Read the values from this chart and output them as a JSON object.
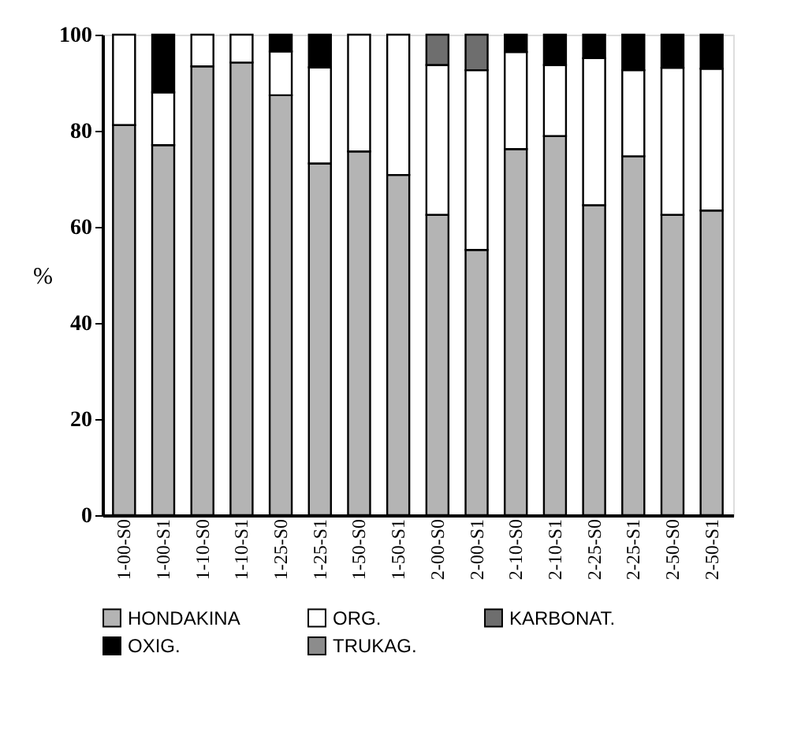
{
  "chart_data": {
    "type": "bar",
    "stacked": true,
    "ylabel": "%",
    "categories": [
      "1-00-S0",
      "1-00-S1",
      "1-10-S0",
      "1-10-S1",
      "1-25-S0",
      "1-25-S1",
      "1-50-S0",
      "1-50-S1",
      "2-00-S0",
      "2-00-S1",
      "2-10-S0",
      "2-10-S1",
      "2-25-S0",
      "2-25-S1",
      "2-50-S0",
      "2-50-S1"
    ],
    "series": [
      {
        "name": "HONDAKINA",
        "color": "#b4b4b4",
        "values": [
          81.2,
          77.0,
          93.4,
          94.2,
          87.4,
          73.2,
          75.7,
          70.8,
          62.5,
          55.2,
          76.2,
          78.9,
          64.5,
          74.7,
          62.5,
          63.4
        ]
      },
      {
        "name": "ORG.",
        "color": "#ffffff",
        "values": [
          18.8,
          11.0,
          6.6,
          5.8,
          9.1,
          20.0,
          24.3,
          29.2,
          31.2,
          37.4,
          20.2,
          14.8,
          30.6,
          17.9,
          30.6,
          29.5
        ]
      },
      {
        "name": "KARBONAT.",
        "color": "#6e6e6e",
        "values": [
          null,
          null,
          null,
          null,
          null,
          null,
          null,
          null,
          6.3,
          7.4,
          null,
          null,
          null,
          null,
          null,
          null
        ]
      },
      {
        "name": "OXIG.",
        "color": "#000000",
        "values": [
          null,
          12.0,
          null,
          null,
          3.5,
          6.8,
          null,
          null,
          null,
          null,
          3.6,
          6.3,
          4.9,
          7.4,
          6.9,
          7.1
        ]
      },
      {
        "name": "TRUKAG.",
        "color": "#8c8c8c",
        "values": [
          null,
          null,
          null,
          null,
          null,
          null,
          null,
          null,
          null,
          null,
          null,
          null,
          null,
          null,
          null,
          null
        ]
      }
    ],
    "ylim": [
      0,
      100
    ],
    "yticks": [
      0,
      20,
      40,
      60,
      80,
      100
    ],
    "grid": false,
    "legend": "bottom"
  }
}
